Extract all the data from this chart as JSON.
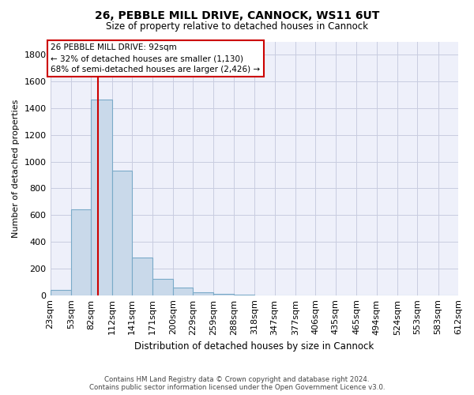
{
  "title_line1": "26, PEBBLE MILL DRIVE, CANNOCK, WS11 6UT",
  "title_line2": "Size of property relative to detached houses in Cannock",
  "xlabel": "Distribution of detached houses by size in Cannock",
  "ylabel": "Number of detached properties",
  "footer_line1": "Contains HM Land Registry data © Crown copyright and database right 2024.",
  "footer_line2": "Contains public sector information licensed under the Open Government Licence v3.0.",
  "bin_edges": [
    23,
    53,
    82,
    112,
    141,
    171,
    200,
    229,
    259,
    288,
    318,
    347,
    377,
    406,
    435,
    465,
    494,
    524,
    553,
    583,
    612
  ],
  "bar_heights": [
    38,
    645,
    1468,
    935,
    283,
    125,
    57,
    22,
    10,
    5,
    0,
    0,
    0,
    0,
    0,
    0,
    0,
    0,
    0,
    0
  ],
  "tick_labels": [
    "23sqm",
    "53sqm",
    "82sqm",
    "112sqm",
    "141sqm",
    "171sqm",
    "200sqm",
    "229sqm",
    "259sqm",
    "288sqm",
    "318sqm",
    "347sqm",
    "377sqm",
    "406sqm",
    "435sqm",
    "465sqm",
    "494sqm",
    "524sqm",
    "553sqm",
    "583sqm",
    "612sqm"
  ],
  "property_size": 92,
  "property_label": "26 PEBBLE MILL DRIVE: 92sqm",
  "pct_smaller": 32,
  "n_smaller": 1130,
  "pct_larger": 68,
  "n_larger": 2426,
  "ylim": [
    0,
    1900
  ],
  "yticks": [
    0,
    200,
    400,
    600,
    800,
    1000,
    1200,
    1400,
    1600,
    1800
  ],
  "bar_color": "#c9d9ea",
  "bar_edge_color": "#7aaac8",
  "vline_color": "#cc0000",
  "annotation_box_color": "#cc0000",
  "bg_color": "#eef0fa",
  "grid_color": "#c8cce0"
}
